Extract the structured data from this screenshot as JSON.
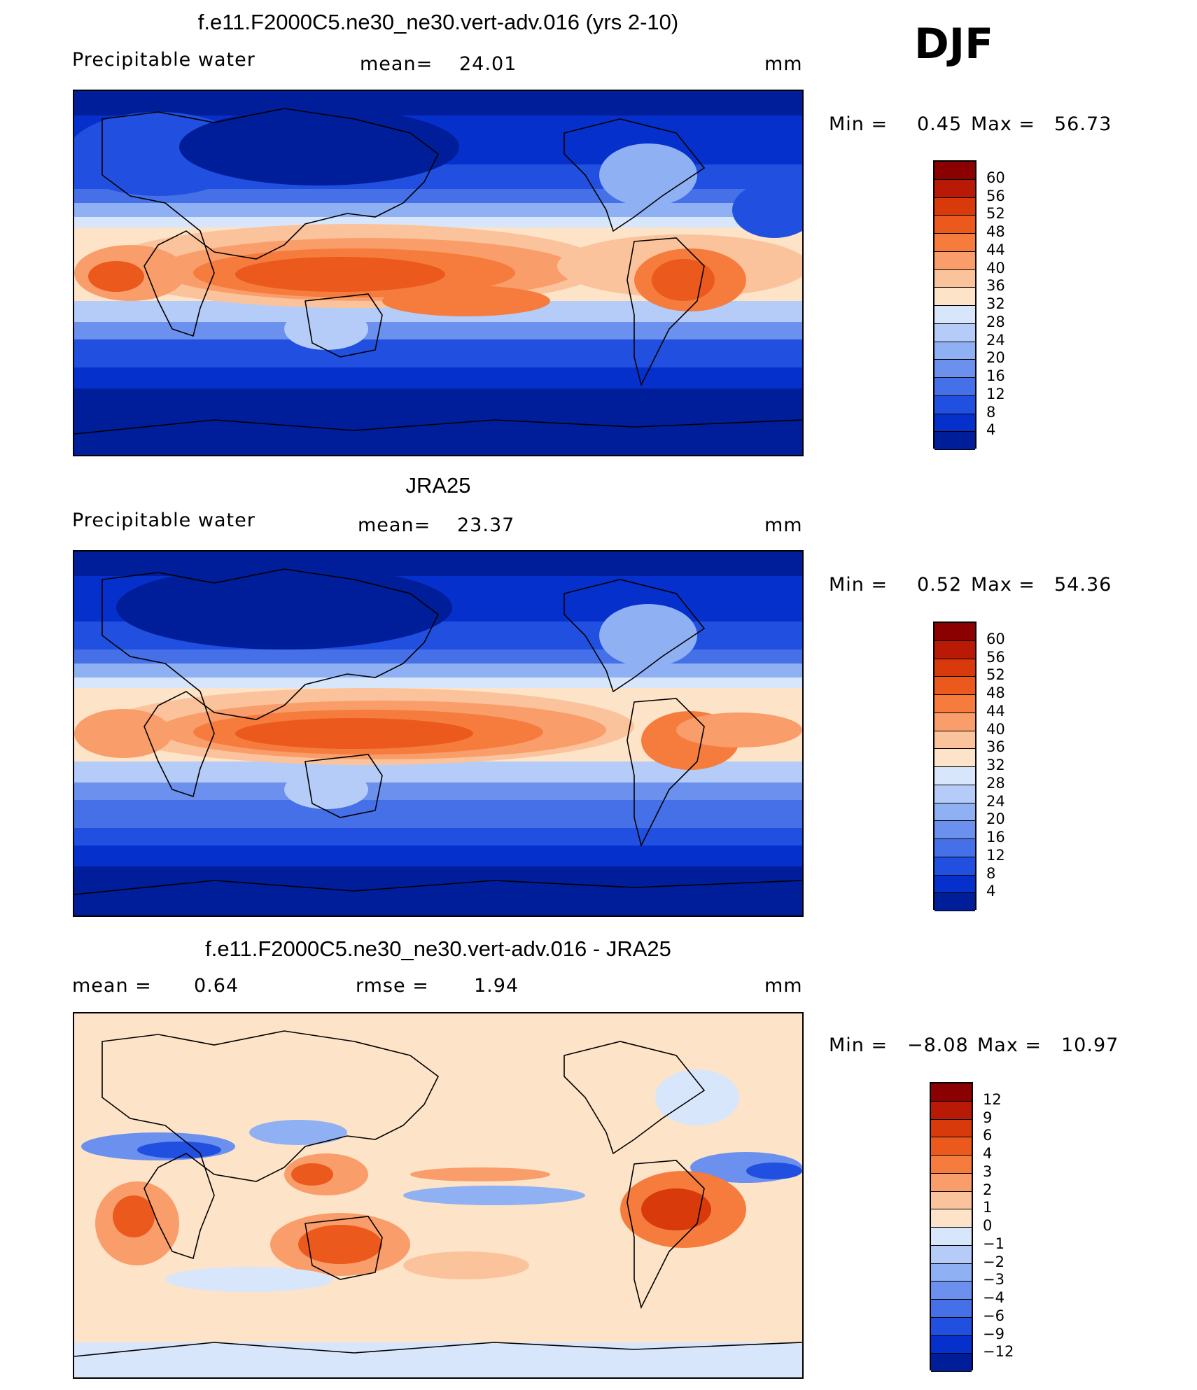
{
  "season": "DJF",
  "panels": [
    {
      "title": "f.e11.F2000C5.ne30_ne30.vert-adv.016 (yrs 2-10)",
      "left_label": "Precipitable  water",
      "center_label": "mean=",
      "center_value": "24.01",
      "units": "mm",
      "min_label": "Min  =",
      "min_value": "0.45",
      "max_label": "Max  =",
      "max_value": "56.73",
      "colorbar": {
        "labels": [
          "60",
          "56",
          "52",
          "48",
          "44",
          "40",
          "36",
          "32",
          "28",
          "24",
          "20",
          "16",
          "12",
          "8",
          "4"
        ],
        "colors": [
          "#8b0000",
          "#b81a05",
          "#d83a0c",
          "#eb5a1c",
          "#f57c3d",
          "#f99e6a",
          "#fbc39c",
          "#fde3c8",
          "#d8e6fb",
          "#b4ccf7",
          "#8fb0f3",
          "#6b90ee",
          "#4670e8",
          "#2150e0",
          "#0630cc",
          "#001e9a"
        ]
      }
    },
    {
      "title": "JRA25",
      "left_label": "Precipitable  water",
      "center_label": "mean=",
      "center_value": "23.37",
      "units": "mm",
      "min_label": "Min  =",
      "min_value": "0.52",
      "max_label": "Max  =",
      "max_value": "54.36",
      "colorbar": {
        "labels": [
          "60",
          "56",
          "52",
          "48",
          "44",
          "40",
          "36",
          "32",
          "28",
          "24",
          "20",
          "16",
          "12",
          "8",
          "4"
        ],
        "colors": [
          "#8b0000",
          "#b81a05",
          "#d83a0c",
          "#eb5a1c",
          "#f57c3d",
          "#f99e6a",
          "#fbc39c",
          "#fde3c8",
          "#d8e6fb",
          "#b4ccf7",
          "#8fb0f3",
          "#6b90ee",
          "#4670e8",
          "#2150e0",
          "#0630cc",
          "#001e9a"
        ]
      }
    },
    {
      "title": "f.e11.F2000C5.ne30_ne30.vert-adv.016 - JRA25",
      "left_label": "mean  =",
      "left_value": "0.64",
      "center_label": "rmse  =",
      "center_value": "1.94",
      "units": "mm",
      "min_label": "Min  =",
      "min_value": "−8.08",
      "max_label": "Max  =",
      "max_value": "10.97",
      "colorbar": {
        "labels": [
          "12",
          "9",
          "6",
          "4",
          "3",
          "2",
          "1",
          "0",
          "−1",
          "−2",
          "−3",
          "−4",
          "−6",
          "−9",
          "−12"
        ],
        "colors": [
          "#8b0000",
          "#b81a05",
          "#d83a0c",
          "#eb5a1c",
          "#f57c3d",
          "#f99e6a",
          "#fbc39c",
          "#fde3c8",
          "#d8e6fb",
          "#b4ccf7",
          "#8fb0f3",
          "#6b90ee",
          "#4670e8",
          "#2150e0",
          "#0630cc",
          "#001e9a"
        ]
      }
    }
  ]
}
